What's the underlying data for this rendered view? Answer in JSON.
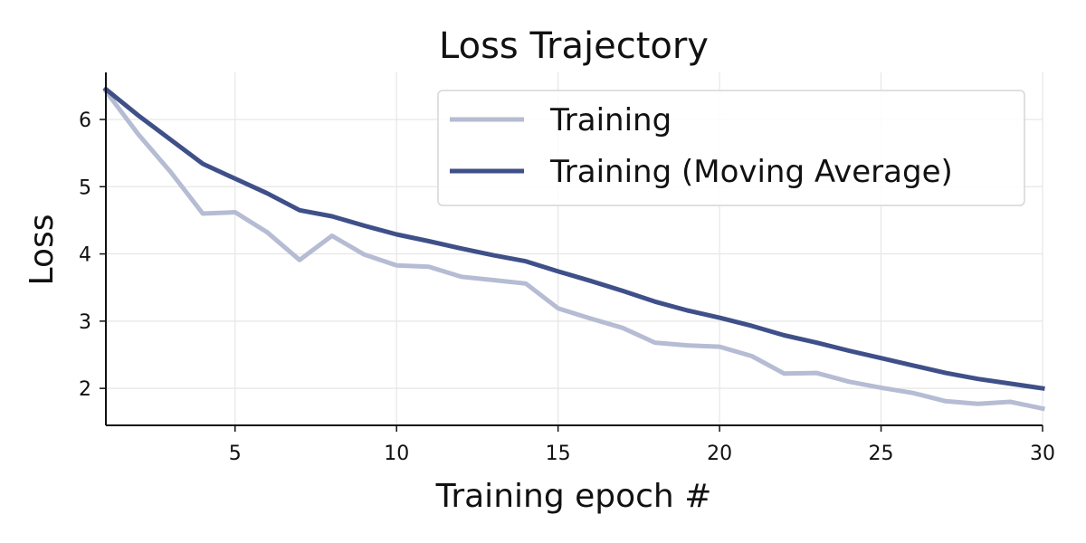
{
  "chart_data": {
    "type": "line",
    "title": "Loss Trajectory",
    "xlabel": "Training epoch #",
    "ylabel": "Loss",
    "xlim": [
      1,
      30
    ],
    "ylim": [
      1.45,
      6.7
    ],
    "xticks": [
      5,
      10,
      15,
      20,
      25,
      30
    ],
    "yticks": [
      2,
      3,
      4,
      5,
      6
    ],
    "grid": true,
    "legend_position": "top-right",
    "x": [
      1,
      2,
      3,
      4,
      5,
      6,
      7,
      8,
      9,
      10,
      11,
      12,
      13,
      14,
      15,
      16,
      17,
      18,
      19,
      20,
      21,
      22,
      23,
      24,
      25,
      26,
      27,
      28,
      29,
      30
    ],
    "series": [
      {
        "name": "Training",
        "color": "#b5bcd3",
        "values": [
          6.42,
          5.78,
          5.22,
          4.6,
          4.62,
          4.32,
          3.91,
          4.27,
          3.99,
          3.83,
          3.81,
          3.66,
          3.61,
          3.56,
          3.19,
          3.04,
          2.9,
          2.68,
          2.64,
          2.62,
          2.48,
          2.22,
          2.23,
          2.1,
          2.01,
          1.93,
          1.81,
          1.77,
          1.8,
          1.7
        ]
      },
      {
        "name": "Training (Moving Average)",
        "color": "#3f5089",
        "values": [
          6.45,
          6.06,
          5.7,
          5.34,
          5.12,
          4.9,
          4.65,
          4.56,
          4.42,
          4.29,
          4.19,
          4.08,
          3.98,
          3.89,
          3.74,
          3.6,
          3.45,
          3.29,
          3.16,
          3.05,
          2.93,
          2.79,
          2.68,
          2.56,
          2.45,
          2.34,
          2.23,
          2.14,
          2.07,
          2.0
        ]
      }
    ]
  }
}
